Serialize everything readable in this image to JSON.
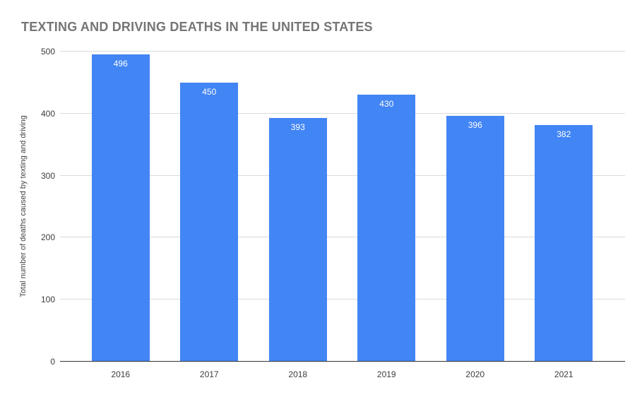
{
  "chart_data": {
    "type": "bar",
    "title": "TEXTING AND DRIVING DEATHS IN THE UNITED STATES",
    "categories": [
      "2016",
      "2017",
      "2018",
      "2019",
      "2020",
      "2021"
    ],
    "values": [
      496,
      450,
      393,
      430,
      396,
      382
    ],
    "xlabel": "",
    "ylabel": "Total number of deaths caused by texting and driving",
    "ylim": [
      0,
      500
    ],
    "yticks": [
      0,
      100,
      200,
      300,
      400,
      500
    ],
    "grid": true,
    "legend_position": "none",
    "colors": {
      "bar": "#4285f4",
      "value_label": "#ffffff",
      "title": "#757575",
      "axis_label": "#3d3d3d",
      "gridline": "#dadada",
      "baseline": "#333333",
      "background": "#ffffff"
    }
  }
}
